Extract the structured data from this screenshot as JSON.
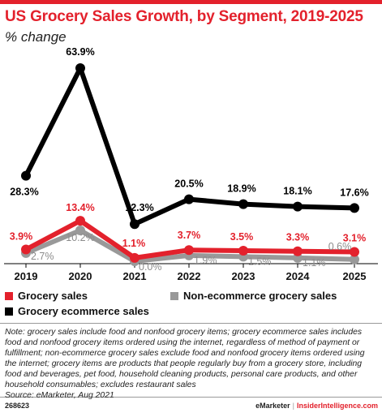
{
  "title": "US Grocery Sales Growth, by Segment, 2019-2025",
  "subtitle": "% change",
  "chart_data": {
    "type": "line",
    "title": "US Grocery Sales Growth, by Segment, 2019-2025",
    "subtitle": "% change",
    "x": [
      "2019",
      "2020",
      "2021",
      "2022",
      "2023",
      "2024",
      "2025"
    ],
    "ylim": [
      0,
      70
    ],
    "grid": false,
    "legend_position": "bottom",
    "series": [
      {
        "name": "Grocery ecommerce sales",
        "color": "#000000",
        "values": [
          28.3,
          63.9,
          12.3,
          20.5,
          18.9,
          18.1,
          17.6
        ],
        "labels": [
          "28.3%",
          "63.9%",
          "12.3%",
          "20.5%",
          "18.9%",
          "18.1%",
          "17.6%"
        ]
      },
      {
        "name": "Grocery sales",
        "color": "#e3212c",
        "values": [
          3.9,
          13.4,
          1.1,
          3.7,
          3.5,
          3.3,
          3.1
        ],
        "labels": [
          "3.9%",
          "13.4%",
          "1.1%",
          "3.7%",
          "3.5%",
          "3.3%",
          "3.1%"
        ]
      },
      {
        "name": "Non-ecommerce grocery sales",
        "color": "#999999",
        "values": [
          2.7,
          10.2,
          0.0,
          1.9,
          1.5,
          1.1,
          0.6
        ],
        "labels": [
          "2.7%",
          "10.2%",
          "0.0%",
          "1.9%",
          "1.5%",
          "1.1%",
          "0.6%"
        ]
      }
    ]
  },
  "legend": {
    "grocery": "Grocery sales",
    "nonecom": "Non-ecommerce grocery sales",
    "ecom": "Grocery ecommerce sales"
  },
  "note": "Note: grocery sales include food and nonfood grocery items; grocery ecommerce sales includes food and nonfood grocery items ordered using the internet, regardless of method of payment or fulfillment; non-ecommerce grocery sales exclude food and nonfood grocery items ordered using the internet; grocery items are products that people regularly buy from a grocery store, including food and beverages, pet food, household cleaning products, personal care products, and other household consumables; excludes restaurant sales",
  "source": "Source: eMarketer, Aug 2021",
  "footer": {
    "id": "268623",
    "brand1": "eMarketer",
    "separator": "|",
    "brand2": "InsiderIntelligence.com"
  }
}
